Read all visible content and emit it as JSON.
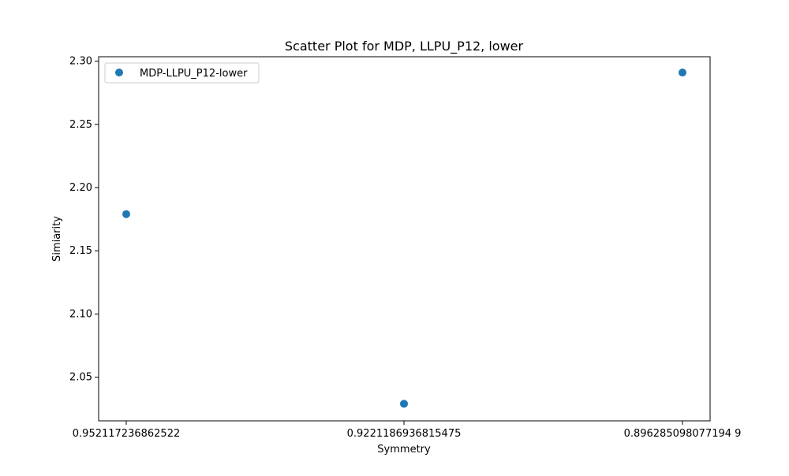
{
  "chart_data": {
    "type": "scatter",
    "title": "Scatter Plot for MDP, LLPU_P12, lower",
    "xlabel": "Symmetry",
    "ylabel": "Simiarity",
    "x_tick_labels": [
      "0.952117236862522",
      "0.9221186936815475",
      "0.896285098077194 9"
    ],
    "y_ticks": [
      2.05,
      2.1,
      2.15,
      2.2,
      2.25,
      2.3
    ],
    "y_tick_labels": [
      "2.05",
      "2.10",
      "2.15",
      "2.20",
      "2.25",
      "2.30"
    ],
    "ylim": [
      2.0155,
      2.3035
    ],
    "grid": false,
    "legend_position": "top-left",
    "series": [
      {
        "name": "MDP-LLPU_P12-lower",
        "color": "#1f77b4",
        "points": [
          {
            "x": "0.952117236862522",
            "y": 2.179
          },
          {
            "x": "0.9221186936815475",
            "y": 2.029
          },
          {
            "x": "0.896285098077194 9",
            "y": 2.291
          }
        ]
      }
    ]
  }
}
